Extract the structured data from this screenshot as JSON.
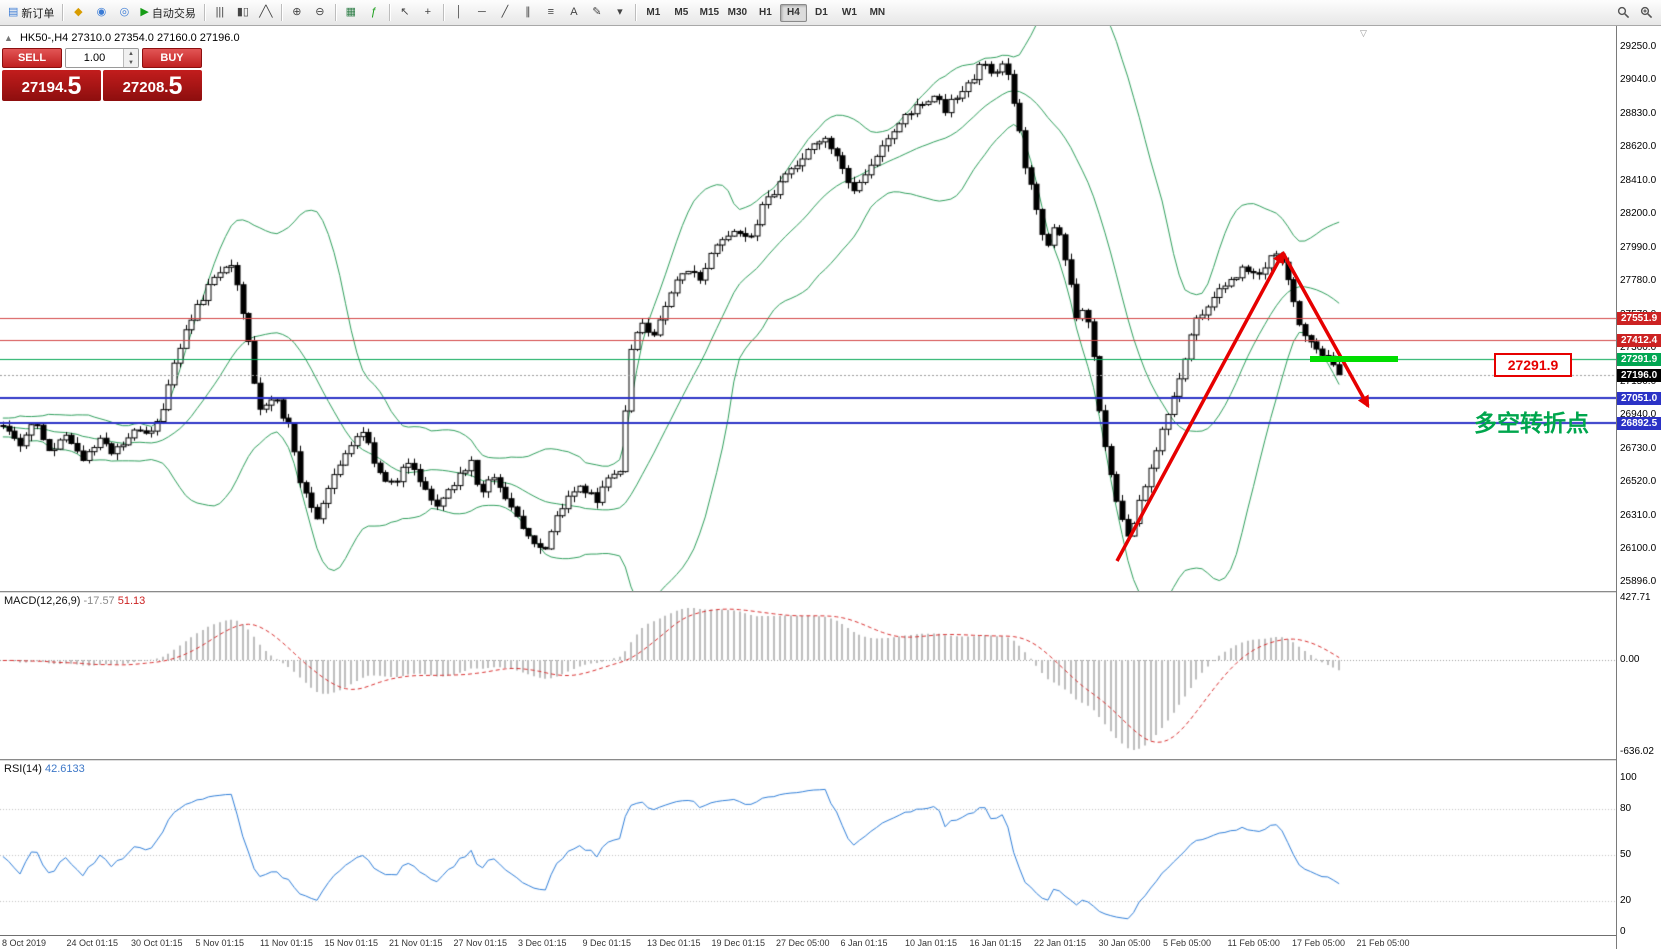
{
  "toolbar": {
    "new_order_label": "新订单",
    "auto_trading_label": "自动交易",
    "timeframes": [
      "M1",
      "M5",
      "M15",
      "M30",
      "H1",
      "H4",
      "D1",
      "W1",
      "MN"
    ],
    "active_timeframe": "H4"
  },
  "icons": {
    "new_order": "▤",
    "new_chart": "◆",
    "profiles": "◉",
    "refresh": "◎",
    "auto_trading": "▶",
    "chart_bars": "|||",
    "chart_candles": "▮▯",
    "chart_line": "╱╲",
    "zoom_in": "⊕",
    "zoom_out": "⊖",
    "tile_windows": "▦",
    "indicators": "ƒ",
    "cursor": "↖",
    "crosshair": "+",
    "vertical_line": "│",
    "horizontal_line": "─",
    "trendline": "╱",
    "channel": "∥",
    "fibonacci": "≡",
    "text_tool": "A",
    "label_tool": "✎",
    "arrows_menu": "▾",
    "panel_toggle": "▲",
    "shift_marker": "▽",
    "volume_up": "▲",
    "volume_down": "▼"
  },
  "chart_header": {
    "symbol_period": "HK50-,H4",
    "ohlc": "27310.0 27354.0 27160.0 27196.0"
  },
  "trade_panel": {
    "sell_label": "SELL",
    "buy_label": "BUY",
    "volume": "1.00",
    "sell_price_main": "27194.",
    "sell_price_pip": "5",
    "buy_price_main": "27208.",
    "buy_price_pip": "5"
  },
  "price_axis": {
    "ticks": [
      "29250.0",
      "29040.0",
      "28830.0",
      "28620.0",
      "28410.0",
      "28200.0",
      "27990.0",
      "27780.0",
      "27570.0",
      "27360.0",
      "27150.0",
      "26940.0",
      "26730.0",
      "26520.0",
      "26310.0",
      "26100.0",
      "25896.0"
    ]
  },
  "price_tags": [
    {
      "label": "27551.9",
      "price": 27551.9,
      "color": "#cc2222"
    },
    {
      "label": "27412.4",
      "price": 27412.4,
      "color": "#cc2222"
    },
    {
      "label": "27291.9",
      "price": 27291.9,
      "color": "#00a651"
    },
    {
      "label": "27196.0",
      "price": 27196.0,
      "color": "#000000"
    },
    {
      "label": "27051.0",
      "price": 27051.0,
      "color": "#2b32c6"
    },
    {
      "label": "26892.5",
      "price": 26892.5,
      "color": "#2b32c6"
    }
  ],
  "hlines": [
    {
      "price": 27551.9,
      "color": "#d24444",
      "width": 1,
      "dash": []
    },
    {
      "price": 27412.4,
      "color": "#d24444",
      "width": 1,
      "dash": []
    },
    {
      "price": 27291.9,
      "color": "#00a651",
      "width": 1,
      "dash": []
    },
    {
      "price": 27196.0,
      "color": "#9a9a9a",
      "width": 1,
      "dash": [
        2,
        2
      ]
    },
    {
      "price": 27051.0,
      "color": "#2b32c6",
      "width": 2,
      "dash": []
    },
    {
      "price": 26892.5,
      "color": "#2b32c6",
      "width": 2,
      "dash": []
    }
  ],
  "annotations": {
    "highlight_price_label": "27291.9",
    "turning_point_note": "多空转折点",
    "arrow_color": "#e60000",
    "highlight_color": "#00dd00",
    "note_color": "#00a64d"
  },
  "macd_panel": {
    "name": "MACD(12,26,9)",
    "value_main": "-17.57",
    "value_signal": "51.13",
    "axis_ticks": [
      "427.71",
      "0.00",
      "-636.02"
    ],
    "histogram_color": "#bdbdbd",
    "signal_color": "#d83030"
  },
  "rsi_panel": {
    "name": "RSI(14)",
    "value": "42.6133",
    "axis_ticks": [
      "100",
      "80",
      "50",
      "20",
      "0"
    ],
    "levels": [
      80,
      50,
      20
    ],
    "line_color": "#2f7ed8"
  },
  "time_axis": [
    "8 Oct 2019",
    "24 Oct 01:15",
    "30 Oct 01:15",
    "5 Nov 01:15",
    "11 Nov 01:15",
    "15 Nov 01:15",
    "21 Nov 01:15",
    "27 Nov 01:15",
    "3 Dec 01:15",
    "9 Dec 01:15",
    "13 Dec 01:15",
    "19 Dec 01:15",
    "27 Dec 05:00",
    "6 Jan 01:15",
    "10 Jan 01:15",
    "16 Jan 01:15",
    "22 Jan 01:15",
    "30 Jan 05:00",
    "5 Feb 05:00",
    "11 Feb 05:00",
    "17 Feb 05:00",
    "21 Feb 05:00"
  ],
  "chart_data": {
    "type": "candlestick",
    "symbol": "HK50-",
    "timeframe": "H4",
    "current_bid": 27196.0,
    "candle_count": 235,
    "visible_range": {
      "high": 29382,
      "low": 25840
    },
    "levels": [
      27551.9,
      27412.4,
      27291.9,
      27051.0,
      26892.5
    ],
    "candle_up_color": "#ffffff",
    "candle_down_color": "#000000",
    "candle_outline_color": "#000000",
    "indicators": [
      {
        "type": "bollinger",
        "period": 20,
        "deviation": 2,
        "color": "#2e9e5b"
      },
      {
        "type": "macd",
        "fast": 12,
        "slow": 26,
        "signal": 9
      },
      {
        "type": "rsi",
        "period": 14
      }
    ],
    "price_path": [
      [
        0,
        26870
      ],
      [
        0.012,
        26750
      ],
      [
        0.024,
        26890
      ],
      [
        0.036,
        26700
      ],
      [
        0.048,
        26820
      ],
      [
        0.06,
        26660
      ],
      [
        0.072,
        26790
      ],
      [
        0.084,
        26700
      ],
      [
        0.096,
        26850
      ],
      [
        0.108,
        26800
      ],
      [
        0.12,
        27000
      ],
      [
        0.131,
        27350
      ],
      [
        0.143,
        27600
      ],
      [
        0.155,
        27750
      ],
      [
        0.171,
        27900
      ],
      [
        0.183,
        27450
      ],
      [
        0.191,
        26950
      ],
      [
        0.203,
        27050
      ],
      [
        0.215,
        26850
      ],
      [
        0.223,
        26500
      ],
      [
        0.235,
        26300
      ],
      [
        0.247,
        26550
      ],
      [
        0.259,
        26750
      ],
      [
        0.271,
        26850
      ],
      [
        0.279,
        26600
      ],
      [
        0.291,
        26500
      ],
      [
        0.303,
        26650
      ],
      [
        0.315,
        26480
      ],
      [
        0.327,
        26380
      ],
      [
        0.339,
        26540
      ],
      [
        0.35,
        26650
      ],
      [
        0.357,
        26420
      ],
      [
        0.366,
        26560
      ],
      [
        0.376,
        26400
      ],
      [
        0.386,
        26300
      ],
      [
        0.396,
        26130
      ],
      [
        0.405,
        26100
      ],
      [
        0.414,
        26300
      ],
      [
        0.424,
        26450
      ],
      [
        0.434,
        26480
      ],
      [
        0.444,
        26400
      ],
      [
        0.454,
        26550
      ],
      [
        0.462,
        26580
      ],
      [
        0.47,
        27350
      ],
      [
        0.478,
        27500
      ],
      [
        0.487,
        27450
      ],
      [
        0.498,
        27700
      ],
      [
        0.51,
        27850
      ],
      [
        0.522,
        27800
      ],
      [
        0.534,
        28000
      ],
      [
        0.546,
        28100
      ],
      [
        0.558,
        28050
      ],
      [
        0.569,
        28250
      ],
      [
        0.582,
        28400
      ],
      [
        0.593,
        28500
      ],
      [
        0.605,
        28650
      ],
      [
        0.615,
        28700
      ],
      [
        0.625,
        28550
      ],
      [
        0.637,
        28350
      ],
      [
        0.649,
        28500
      ],
      [
        0.661,
        28650
      ],
      [
        0.673,
        28800
      ],
      [
        0.685,
        28900
      ],
      [
        0.697,
        28950
      ],
      [
        0.705,
        28850
      ],
      [
        0.713,
        28950
      ],
      [
        0.725,
        29050
      ],
      [
        0.733,
        29150
      ],
      [
        0.741,
        29050
      ],
      [
        0.749,
        29180
      ],
      [
        0.757,
        28900
      ],
      [
        0.765,
        28500
      ],
      [
        0.773,
        28250
      ],
      [
        0.781,
        28000
      ],
      [
        0.789,
        28150
      ],
      [
        0.797,
        27850
      ],
      [
        0.803,
        27550
      ],
      [
        0.809,
        27600
      ],
      [
        0.814,
        27450
      ],
      [
        0.821,
        26950
      ],
      [
        0.827,
        26650
      ],
      [
        0.833,
        26400
      ],
      [
        0.838,
        26250
      ],
      [
        0.843,
        26150
      ],
      [
        0.849,
        26350
      ],
      [
        0.854,
        26500
      ],
      [
        0.86,
        26600
      ],
      [
        0.867,
        26850
      ],
      [
        0.875,
        27050
      ],
      [
        0.883,
        27250
      ],
      [
        0.891,
        27500
      ],
      [
        0.899,
        27600
      ],
      [
        0.907,
        27700
      ],
      [
        0.915,
        27750
      ],
      [
        0.922,
        27820
      ],
      [
        0.93,
        27880
      ],
      [
        0.938,
        27820
      ],
      [
        0.946,
        27900
      ],
      [
        0.954,
        27960
      ],
      [
        0.962,
        27800
      ],
      [
        0.969,
        27550
      ],
      [
        0.975,
        27420
      ],
      [
        0.981,
        27350
      ],
      [
        0.988,
        27300
      ],
      [
        0.994,
        27280
      ],
      [
        1,
        27200
      ]
    ]
  }
}
